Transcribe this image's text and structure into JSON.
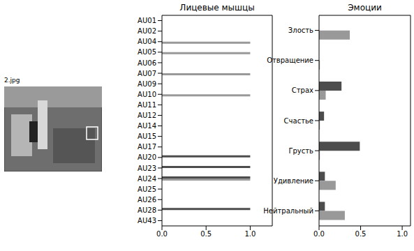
{
  "image_label": "2.jpg",
  "chart_data": [
    {
      "type": "bar",
      "orientation": "horizontal",
      "title": "Лицевые мышцы",
      "categories": [
        "AU01",
        "AU02",
        "AU04",
        "AU05",
        "AU06",
        "AU07",
        "AU09",
        "AU10",
        "AU11",
        "AU12",
        "AU14",
        "AU15",
        "AU17",
        "AU20",
        "AU23",
        "AU24",
        "AU25",
        "AU26",
        "AU28",
        "AU43"
      ],
      "series": [
        {
          "color": "#4d4d4d",
          "values": [
            0,
            0,
            0,
            0,
            0,
            0,
            0,
            0,
            0,
            0,
            0,
            0,
            0,
            1,
            1,
            1,
            0,
            0,
            1,
            0
          ]
        },
        {
          "color": "#999999",
          "values": [
            0,
            0,
            1,
            1,
            0,
            1,
            0,
            1,
            0,
            0,
            0,
            0,
            0,
            0,
            0,
            1,
            0,
            0,
            0,
            0
          ]
        }
      ],
      "xlim": [
        0,
        1.25
      ],
      "xticks": [
        {
          "value": 0,
          "label": "0.0"
        },
        0.5,
        {
          "value": 1,
          "label": "1.0"
        }
      ]
    },
    {
      "type": "bar",
      "orientation": "horizontal",
      "title": "Эмоции",
      "categories": [
        "Злость",
        "Отвращение",
        "Страх",
        "Счастье",
        "Грусть",
        "Удивление",
        "Нейтральный"
      ],
      "series": [
        {
          "color": "#4d4d4d",
          "values": [
            0.0,
            0.0,
            0.27,
            0.06,
            0.49,
            0.07,
            0.07
          ]
        },
        {
          "color": "#999999",
          "values": [
            0.37,
            0.01,
            0.08,
            0.01,
            0.01,
            0.2,
            0.31
          ]
        }
      ],
      "xlim": [
        0,
        1.1
      ],
      "xticks": [
        {
          "value": 0,
          "label": "0.0"
        },
        0.5,
        {
          "value": 1,
          "label": "1.0"
        }
      ]
    }
  ]
}
